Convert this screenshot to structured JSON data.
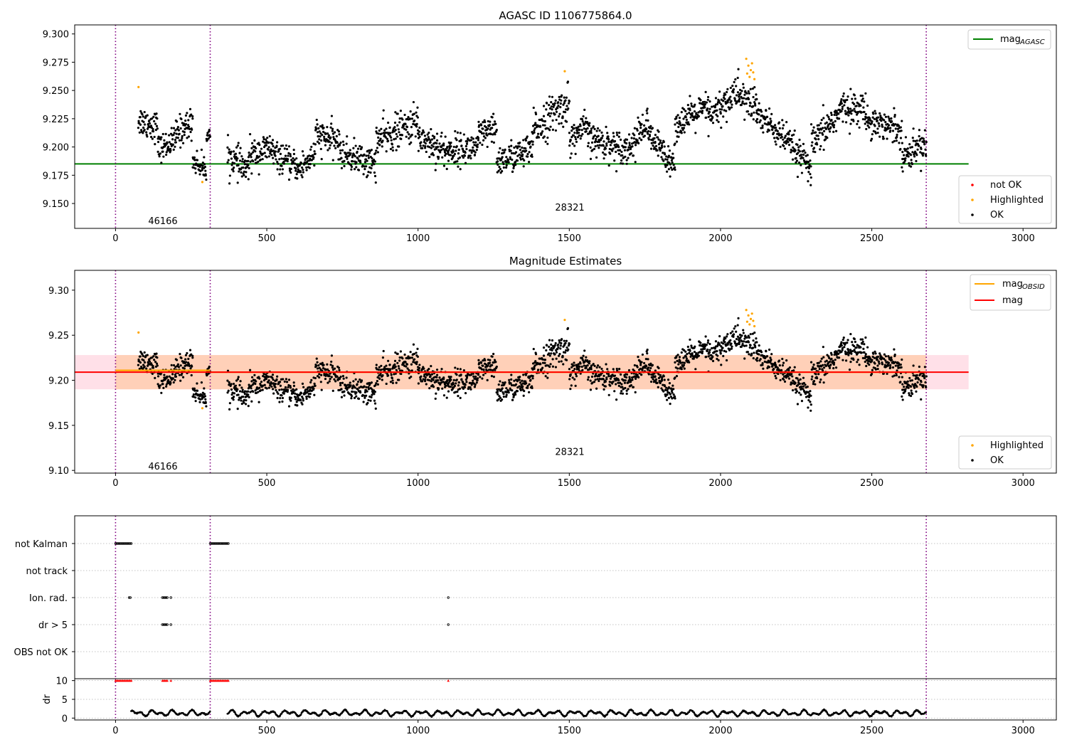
{
  "figure": {
    "title_top": "AGASC ID 1106775864.0",
    "title_middle": "Magnitude Estimates"
  },
  "colors": {
    "ok": "#000000",
    "highlighted": "#ffa500",
    "not_ok": "#ff0000",
    "mag_agasc": "#008000",
    "mag_obsid": "#ffa500",
    "mag": "#ff0000",
    "band_inner": "#ffd0b8",
    "band_outer": "#ffe0e8",
    "obs_boundary": "#800080",
    "grid": "#b0b0b0"
  },
  "chart_data": [
    {
      "type": "scatter",
      "title": "AGASC ID 1106775864.0",
      "xlim": [
        -135,
        3110
      ],
      "ylim": [
        9.128,
        9.308
      ],
      "x_ticks": [
        0,
        500,
        1000,
        1500,
        2000,
        2500,
        3000
      ],
      "y_ticks": [
        9.15,
        9.175,
        9.2,
        9.225,
        9.25,
        9.275,
        9.3
      ],
      "y_tick_labels": [
        "9.150",
        "9.175",
        "9.200",
        "9.225",
        "9.250",
        "9.275",
        "9.300"
      ],
      "legend_position": "right",
      "legend_lines": [
        {
          "label": "mag",
          "sub": "AGASC",
          "color": "#008000"
        }
      ],
      "legend_markers": [
        {
          "label": "not OK",
          "color": "#ff0000"
        },
        {
          "label": "Highlighted",
          "color": "#ffa500"
        },
        {
          "label": "OK",
          "color": "#000000"
        }
      ],
      "mag_agasc": 9.185,
      "line_x_range": [
        -135,
        2820
      ],
      "obs_boundaries": [
        0,
        313,
        2680
      ],
      "obsid_labels": [
        {
          "text": "46166",
          "x": 155,
          "y": 9.135
        },
        {
          "text": "28321",
          "x": 1500,
          "y": 9.147
        }
      ],
      "series_description": "OK points follow a sequence of segments; highlighted points listed separately",
      "segments": [
        {
          "x": [
            75,
            140
          ],
          "y": [
            9.224,
            9.218
          ],
          "amp": 0.008
        },
        {
          "x": [
            140,
            200
          ],
          "y": [
            9.198,
            9.206
          ],
          "amp": 0.007
        },
        {
          "x": [
            200,
            255
          ],
          "y": [
            9.212,
            9.222
          ],
          "amp": 0.008
        },
        {
          "x": [
            255,
            300
          ],
          "y": [
            9.188,
            9.18
          ],
          "amp": 0.006
        },
        {
          "x": [
            300,
            313
          ],
          "y": [
            9.21,
            9.21
          ],
          "amp": 0.004
        },
        {
          "x": [
            370,
            440
          ],
          "y": [
            9.193,
            9.178
          ],
          "amp": 0.008
        },
        {
          "x": [
            440,
            520
          ],
          "y": [
            9.192,
            9.2
          ],
          "amp": 0.008
        },
        {
          "x": [
            520,
            600
          ],
          "y": [
            9.193,
            9.183
          ],
          "amp": 0.007
        },
        {
          "x": [
            600,
            660
          ],
          "y": [
            9.178,
            9.195
          ],
          "amp": 0.008
        },
        {
          "x": [
            660,
            740
          ],
          "y": [
            9.21,
            9.205
          ],
          "amp": 0.008
        },
        {
          "x": [
            740,
            860
          ],
          "y": [
            9.195,
            9.185
          ],
          "amp": 0.008
        },
        {
          "x": [
            860,
            1000
          ],
          "y": [
            9.205,
            9.222
          ],
          "amp": 0.009
        },
        {
          "x": [
            1000,
            1100
          ],
          "y": [
            9.21,
            9.195
          ],
          "amp": 0.009
        },
        {
          "x": [
            1100,
            1200
          ],
          "y": [
            9.197,
            9.2
          ],
          "amp": 0.008
        },
        {
          "x": [
            1200,
            1260
          ],
          "y": [
            9.21,
            9.215
          ],
          "amp": 0.008
        },
        {
          "x": [
            1260,
            1380
          ],
          "y": [
            9.187,
            9.198
          ],
          "amp": 0.008
        },
        {
          "x": [
            1380,
            1500
          ],
          "y": [
            9.215,
            9.24
          ],
          "amp": 0.01
        },
        {
          "x": [
            1500,
            1560
          ],
          "y": [
            9.205,
            9.22
          ],
          "amp": 0.008
        },
        {
          "x": [
            1560,
            1700
          ],
          "y": [
            9.208,
            9.198
          ],
          "amp": 0.008
        },
        {
          "x": [
            1700,
            1760
          ],
          "y": [
            9.2,
            9.222
          ],
          "amp": 0.008
        },
        {
          "x": [
            1760,
            1850
          ],
          "y": [
            9.21,
            9.185
          ],
          "amp": 0.008
        },
        {
          "x": [
            1850,
            1960
          ],
          "y": [
            9.22,
            9.235
          ],
          "amp": 0.008
        },
        {
          "x": [
            1960,
            2060
          ],
          "y": [
            9.225,
            9.25
          ],
          "amp": 0.009
        },
        {
          "x": [
            2060,
            2120
          ],
          "y": [
            9.245,
            9.235
          ],
          "amp": 0.01
        },
        {
          "x": [
            2120,
            2220
          ],
          "y": [
            9.23,
            9.205
          ],
          "amp": 0.008
        },
        {
          "x": [
            2220,
            2300
          ],
          "y": [
            9.205,
            9.18
          ],
          "amp": 0.008
        },
        {
          "x": [
            2300,
            2400
          ],
          "y": [
            9.2,
            9.233
          ],
          "amp": 0.009
        },
        {
          "x": [
            2400,
            2480
          ],
          "y": [
            9.235,
            9.233
          ],
          "amp": 0.008
        },
        {
          "x": [
            2480,
            2600
          ],
          "y": [
            9.225,
            9.215
          ],
          "amp": 0.008
        },
        {
          "x": [
            2600,
            2680
          ],
          "y": [
            9.19,
            9.205
          ],
          "amp": 0.008
        }
      ],
      "highlighted": [
        {
          "x": 76,
          "y": 9.253
        },
        {
          "x": 287,
          "y": 9.169
        },
        {
          "x": 1485,
          "y": 9.267
        },
        {
          "x": 2085,
          "y": 9.278
        },
        {
          "x": 2088,
          "y": 9.265
        },
        {
          "x": 2092,
          "y": 9.272
        },
        {
          "x": 2096,
          "y": 9.262
        },
        {
          "x": 2100,
          "y": 9.268
        },
        {
          "x": 2104,
          "y": 9.274
        },
        {
          "x": 2108,
          "y": 9.266
        },
        {
          "x": 2112,
          "y": 9.26
        }
      ]
    },
    {
      "type": "scatter",
      "title": "Magnitude Estimates",
      "xlim": [
        -135,
        3110
      ],
      "ylim": [
        9.097,
        9.322
      ],
      "x_ticks": [
        0,
        500,
        1000,
        1500,
        2000,
        2500,
        3000
      ],
      "y_ticks": [
        9.1,
        9.15,
        9.2,
        9.25,
        9.3
      ],
      "y_tick_labels": [
        "9.10",
        "9.15",
        "9.20",
        "9.25",
        "9.30"
      ],
      "legend_lines": [
        {
          "label": "mag",
          "sub": "OBSID",
          "color": "#ffa500"
        },
        {
          "label": "mag",
          "sub": "",
          "color": "#ff0000"
        }
      ],
      "legend_markers": [
        {
          "label": "Highlighted",
          "color": "#ffa500"
        },
        {
          "label": "OK",
          "color": "#000000"
        }
      ],
      "mag": 9.209,
      "mag_obsid": [
        {
          "x": [
            0,
            313
          ],
          "y": 9.211
        },
        {
          "x": [
            313,
            2680
          ],
          "y": 9.209
        }
      ],
      "band_outer": [
        9.19,
        9.228
      ],
      "band_inner": [
        9.19,
        9.228
      ],
      "band_inner_x": [
        0,
        2680
      ],
      "band_x": [
        -135,
        2820
      ],
      "obs_boundaries": [
        0,
        313,
        2680
      ],
      "obsid_labels": [
        {
          "text": "46166",
          "x": 155,
          "y": 9.105
        },
        {
          "text": "28321",
          "x": 1500,
          "y": 9.121
        }
      ]
    },
    {
      "type": "scatter",
      "title": "",
      "xlim": [
        -135,
        3110
      ],
      "x_ticks": [
        0,
        500,
        1000,
        1500,
        2000,
        2500,
        3000
      ],
      "categories": [
        "not Kalman",
        "not track",
        "Ion. rad.",
        "dr > 5",
        "OBS not OK"
      ],
      "flags": {
        "not Kalman": [
          [
            0,
            55
          ],
          [
            313,
            375
          ]
        ],
        "not track": [],
        "Ion. rad.": [
          [
            45,
            50
          ],
          [
            155,
            172
          ],
          [
            183,
            186
          ],
          [
            1100,
            1102
          ]
        ],
        "dr > 5": [
          [
            155,
            172
          ],
          [
            183,
            186
          ],
          [
            1100,
            1102
          ]
        ],
        "OBS not OK": []
      },
      "obs_boundaries": [
        0,
        313,
        2680
      ]
    },
    {
      "type": "scatter",
      "ylabel": "dr",
      "xlim": [
        -135,
        3110
      ],
      "ylim": [
        -0.5,
        10.5
      ],
      "y_ticks": [
        0,
        5,
        10
      ],
      "y_tick_labels": [
        "0",
        "5",
        "10"
      ],
      "x_ticks": [
        0,
        500,
        1000,
        1500,
        2000,
        2500,
        3000
      ],
      "x_tick_labels": [
        "0",
        "500",
        "1000",
        "1500",
        "2000",
        "2500",
        "3000"
      ],
      "clipped_points_y": 10,
      "clipped_ranges": [
        [
          0,
          55
        ],
        [
          155,
          172
        ],
        [
          183,
          186
        ],
        [
          313,
          375
        ],
        [
          1100,
          1102
        ]
      ],
      "dr_gaps": [
        [
          0,
          50
        ],
        [
          313,
          370
        ]
      ],
      "dr_range": [
        0.3,
        2.5
      ],
      "obs_boundaries": [
        0,
        313,
        2680
      ]
    }
  ]
}
